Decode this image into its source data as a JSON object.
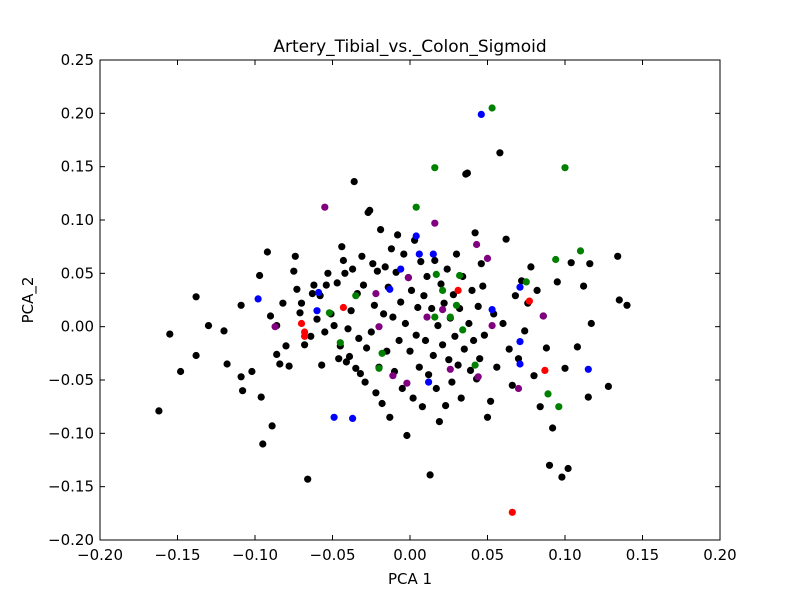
{
  "chart_data": {
    "type": "scatter",
    "title": "Artery_Tibial_vs._Colon_Sigmoid",
    "xlabel": "PCA 1",
    "ylabel": "PCA_2",
    "xlim": [
      -0.2,
      0.2
    ],
    "ylim": [
      -0.2,
      0.25
    ],
    "xticks": [
      -0.2,
      -0.15,
      -0.1,
      -0.05,
      0.0,
      0.05,
      0.1,
      0.15,
      0.2
    ],
    "xtick_labels": [
      "−0.20",
      "−0.15",
      "−0.10",
      "−0.05",
      "0.00",
      "0.05",
      "0.10",
      "0.15",
      "0.20"
    ],
    "yticks": [
      -0.2,
      -0.15,
      -0.1,
      -0.05,
      0.0,
      0.05,
      0.1,
      0.15,
      0.2,
      0.25
    ],
    "ytick_labels": [
      "−0.20",
      "−0.15",
      "−0.10",
      "−0.05",
      "0.00",
      "0.05",
      "0.10",
      "0.15",
      "0.20",
      "0.25"
    ],
    "grid": false,
    "series": [
      {
        "color": "#000000",
        "points": [
          [
            -0.162,
            -0.079
          ],
          [
            -0.155,
            -0.007
          ],
          [
            -0.148,
            -0.042
          ],
          [
            -0.138,
            0.028
          ],
          [
            -0.138,
            -0.027
          ],
          [
            -0.13,
            0.001
          ],
          [
            -0.12,
            -0.004
          ],
          [
            -0.118,
            -0.035
          ],
          [
            -0.109,
            0.02
          ],
          [
            -0.108,
            -0.06
          ],
          [
            -0.109,
            -0.047
          ],
          [
            -0.102,
            -0.042
          ],
          [
            -0.097,
            0.048
          ],
          [
            -0.096,
            -0.066
          ],
          [
            -0.095,
            -0.11
          ],
          [
            -0.092,
            0.07
          ],
          [
            -0.089,
            -0.093
          ],
          [
            -0.09,
            0.01
          ],
          [
            -0.086,
            0.001
          ],
          [
            -0.086,
            -0.026
          ],
          [
            -0.084,
            -0.035
          ],
          [
            -0.082,
            0.022
          ],
          [
            -0.08,
            -0.018
          ],
          [
            -0.078,
            -0.037
          ],
          [
            -0.075,
            0.052
          ],
          [
            -0.074,
            0.066
          ],
          [
            -0.073,
            0.035
          ],
          [
            -0.071,
            0.013
          ],
          [
            -0.07,
            0.022
          ],
          [
            -0.068,
            -0.017
          ],
          [
            -0.066,
            -0.143
          ],
          [
            -0.064,
            -0.009
          ],
          [
            -0.063,
            0.031
          ],
          [
            -0.062,
            0.039
          ],
          [
            -0.06,
            0.007
          ],
          [
            -0.058,
            0.029
          ],
          [
            -0.057,
            -0.036
          ],
          [
            -0.055,
            -0.005
          ],
          [
            -0.054,
            0.039
          ],
          [
            -0.053,
            0.05
          ],
          [
            -0.051,
            0.012
          ],
          [
            -0.049,
            0.001
          ],
          [
            -0.047,
            0.041
          ],
          [
            -0.046,
            -0.03
          ],
          [
            -0.045,
            -0.018
          ],
          [
            -0.044,
            0.075
          ],
          [
            -0.043,
            0.062
          ],
          [
            -0.042,
            0.05
          ],
          [
            -0.041,
            -0.033
          ],
          [
            -0.04,
            -0.002
          ],
          [
            -0.039,
            -0.028
          ],
          [
            -0.038,
            0.015
          ],
          [
            -0.037,
            0.054
          ],
          [
            -0.036,
            0.136
          ],
          [
            -0.035,
            -0.039
          ],
          [
            -0.034,
            0.031
          ],
          [
            -0.033,
            -0.011
          ],
          [
            -0.032,
            -0.044
          ],
          [
            -0.031,
            0.066
          ],
          [
            -0.03,
            0.039
          ],
          [
            -0.029,
            -0.052
          ],
          [
            -0.028,
            -0.02
          ],
          [
            -0.027,
            0.107
          ],
          [
            -0.026,
            0.109
          ],
          [
            -0.025,
            -0.005
          ],
          [
            -0.024,
            0.059
          ],
          [
            -0.023,
            0.02
          ],
          [
            -0.022,
            -0.062
          ],
          [
            -0.021,
            0.052
          ],
          [
            -0.02,
            -0.038
          ],
          [
            -0.019,
            0.091
          ],
          [
            -0.018,
            -0.072
          ],
          [
            -0.017,
            0.012
          ],
          [
            -0.016,
            0.056
          ],
          [
            -0.015,
            -0.023
          ],
          [
            -0.014,
            0.037
          ],
          [
            -0.013,
            -0.085
          ],
          [
            -0.012,
            0.073
          ],
          [
            -0.011,
            0.009
          ],
          [
            -0.01,
            -0.042
          ],
          [
            -0.009,
            0.051
          ],
          [
            -0.008,
            0.086
          ],
          [
            -0.007,
            -0.013
          ],
          [
            -0.006,
            0.023
          ],
          [
            -0.005,
            -0.058
          ],
          [
            -0.004,
            0.068
          ],
          [
            -0.003,
            0.003
          ],
          [
            -0.002,
            -0.102
          ],
          [
            -0.001,
            0.046
          ],
          [
            0.0,
            -0.023
          ],
          [
            0.001,
            0.034
          ],
          [
            0.002,
            -0.067
          ],
          [
            0.003,
            0.081
          ],
          [
            0.004,
            -0.008
          ],
          [
            0.005,
            0.018
          ],
          [
            0.006,
            -0.038
          ],
          [
            0.007,
            0.061
          ],
          [
            0.008,
            -0.075
          ],
          [
            0.009,
            0.029
          ],
          [
            0.01,
            -0.013
          ],
          [
            0.011,
            0.047
          ],
          [
            0.012,
            -0.045
          ],
          [
            0.013,
            -0.139
          ],
          [
            0.014,
            0.017
          ],
          [
            0.015,
            -0.027
          ],
          [
            0.016,
            0.062
          ],
          [
            0.017,
            -0.058
          ],
          [
            0.018,
            0.001
          ],
          [
            0.019,
            -0.089
          ],
          [
            0.02,
            0.04
          ],
          [
            0.021,
            -0.017
          ],
          [
            0.022,
            0.022
          ],
          [
            0.023,
            -0.074
          ],
          [
            0.024,
            0.054
          ],
          [
            0.025,
            -0.031
          ],
          [
            0.026,
            0.008
          ],
          [
            0.027,
            -0.052
          ],
          [
            0.028,
            0.03
          ],
          [
            0.029,
            -0.009
          ],
          [
            0.03,
            0.068
          ],
          [
            0.031,
            -0.036
          ],
          [
            0.032,
            0.017
          ],
          [
            0.033,
            -0.067
          ],
          [
            0.034,
            0.047
          ],
          [
            0.035,
            -0.021
          ],
          [
            0.036,
            0.143
          ],
          [
            0.037,
            0.144
          ],
          [
            0.038,
            0.003
          ],
          [
            0.039,
            -0.041
          ],
          [
            0.04,
            0.034
          ],
          [
            0.041,
            -0.013
          ],
          [
            0.042,
            0.088
          ],
          [
            0.043,
            -0.049
          ],
          [
            0.044,
            0.019
          ],
          [
            0.045,
            -0.03
          ],
          [
            0.046,
            0.059
          ],
          [
            0.047,
            0.038
          ],
          [
            0.048,
            -0.008
          ],
          [
            0.05,
            -0.085
          ],
          [
            0.052,
            -0.07
          ],
          [
            0.054,
            0.012
          ],
          [
            0.056,
            -0.038
          ],
          [
            0.058,
            0.163
          ],
          [
            0.06,
            0.003
          ],
          [
            0.062,
            0.082
          ],
          [
            0.064,
            -0.021
          ],
          [
            0.066,
            -0.055
          ],
          [
            0.068,
            0.029
          ],
          [
            0.07,
            -0.03
          ],
          [
            0.072,
            0.043
          ],
          [
            0.074,
            -0.004
          ],
          [
            0.076,
            0.022
          ],
          [
            0.078,
            0.056
          ],
          [
            0.08,
            -0.046
          ],
          [
            0.082,
            0.034
          ],
          [
            0.084,
            -0.075
          ],
          [
            0.086,
            0.01
          ],
          [
            0.088,
            -0.02
          ],
          [
            0.09,
            -0.13
          ],
          [
            0.092,
            -0.095
          ],
          [
            0.095,
            0.042
          ],
          [
            0.098,
            -0.141
          ],
          [
            0.1,
            -0.039
          ],
          [
            0.102,
            -0.133
          ],
          [
            0.104,
            0.06
          ],
          [
            0.108,
            -0.019
          ],
          [
            0.112,
            0.038
          ],
          [
            0.115,
            -0.066
          ],
          [
            0.116,
            0.059
          ],
          [
            0.117,
            0.003
          ],
          [
            0.128,
            -0.056
          ],
          [
            0.134,
            0.066
          ],
          [
            0.135,
            0.025
          ],
          [
            0.14,
            0.02
          ]
        ]
      },
      {
        "color": "#0000ff",
        "points": [
          [
            -0.098,
            0.026
          ],
          [
            -0.06,
            0.015
          ],
          [
            -0.059,
            0.032
          ],
          [
            -0.049,
            -0.085
          ],
          [
            -0.037,
            -0.086
          ],
          [
            -0.013,
            0.035
          ],
          [
            -0.006,
            0.054
          ],
          [
            0.004,
            0.085
          ],
          [
            0.006,
            0.068
          ],
          [
            0.012,
            -0.052
          ],
          [
            0.015,
            0.068
          ],
          [
            0.046,
            0.199
          ],
          [
            0.053,
            0.016
          ],
          [
            0.071,
            0.037
          ],
          [
            0.071,
            -0.014
          ],
          [
            0.071,
            -0.035
          ],
          [
            0.115,
            -0.04
          ]
        ]
      },
      {
        "color": "#008000",
        "points": [
          [
            -0.052,
            0.013
          ],
          [
            -0.045,
            -0.015
          ],
          [
            -0.035,
            0.029
          ],
          [
            -0.018,
            -0.025
          ],
          [
            -0.02,
            -0.039
          ],
          [
            0.004,
            0.112
          ],
          [
            0.016,
            0.149
          ],
          [
            0.017,
            0.049
          ],
          [
            0.021,
            0.034
          ],
          [
            0.016,
            0.009
          ],
          [
            0.026,
            0.009
          ],
          [
            0.03,
            0.02
          ],
          [
            0.032,
            0.048
          ],
          [
            0.034,
            -0.003
          ],
          [
            0.042,
            -0.036
          ],
          [
            0.053,
            0.205
          ],
          [
            0.075,
            0.042
          ],
          [
            0.089,
            -0.063
          ],
          [
            0.094,
            0.063
          ],
          [
            0.096,
            -0.075
          ],
          [
            0.1,
            0.149
          ],
          [
            0.11,
            0.071
          ]
        ]
      },
      {
        "color": "#ff0000",
        "points": [
          [
            -0.07,
            0.003
          ],
          [
            -0.068,
            -0.005
          ],
          [
            -0.068,
            -0.009
          ],
          [
            -0.043,
            0.018
          ],
          [
            0.031,
            0.034
          ],
          [
            0.066,
            -0.174
          ],
          [
            0.077,
            0.024
          ],
          [
            0.087,
            -0.041
          ]
        ]
      },
      {
        "color": "#800080",
        "points": [
          [
            -0.087,
            0.0
          ],
          [
            -0.055,
            0.112
          ],
          [
            -0.022,
            0.031
          ],
          [
            -0.02,
            0.0
          ],
          [
            -0.011,
            -0.046
          ],
          [
            -0.002,
            -0.053
          ],
          [
            -0.001,
            0.046
          ],
          [
            0.011,
            0.009
          ],
          [
            0.016,
            0.097
          ],
          [
            0.021,
            0.016
          ],
          [
            0.026,
            -0.04
          ],
          [
            0.043,
            0.077
          ],
          [
            0.044,
            -0.047
          ],
          [
            0.05,
            0.064
          ],
          [
            0.053,
            0.001
          ],
          [
            0.07,
            -0.058
          ],
          [
            0.086,
            0.01
          ]
        ]
      }
    ]
  }
}
